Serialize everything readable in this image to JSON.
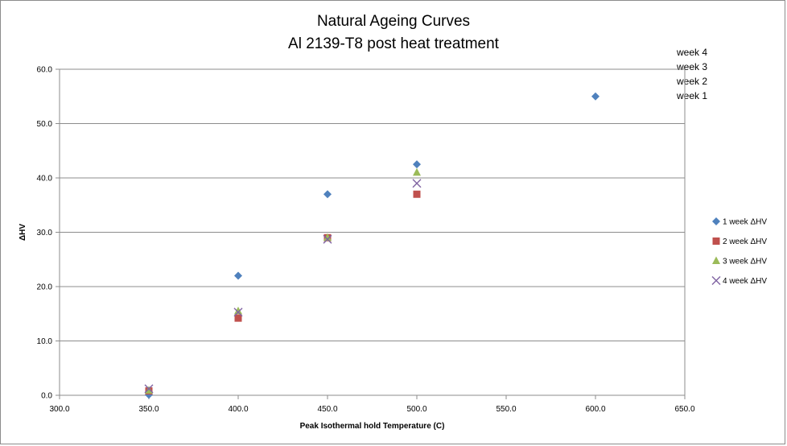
{
  "chart_data": {
    "type": "scatter",
    "title": "Natural Ageing Curves",
    "subtitle": "Al 2139-T8 post heat treatment",
    "xlabel": "Peak Isothermal hold Temperature (C)",
    "ylabel": "ΔHV",
    "xlim": [
      300,
      650
    ],
    "ylim": [
      0,
      60
    ],
    "x_ticks": [
      "300.0",
      "350.0",
      "400.0",
      "450.0",
      "500.0",
      "550.0",
      "600.0",
      "650.0"
    ],
    "y_ticks": [
      "0.0",
      "10.0",
      "20.0",
      "30.0",
      "40.0",
      "50.0",
      "60.0"
    ],
    "grid": "horizontal",
    "legend_position": "right",
    "side_notes": [
      "week 4",
      "week 3",
      "week 2",
      "week 1"
    ],
    "series": [
      {
        "name": "1 week  ΔHV",
        "marker": "diamond",
        "color": "#4f81bd",
        "points": [
          [
            350,
            0.1
          ],
          [
            400,
            22.0
          ],
          [
            450,
            37.0
          ],
          [
            500,
            42.5
          ],
          [
            600,
            55.0
          ]
        ]
      },
      {
        "name": "2 week  ΔHV",
        "marker": "square",
        "color": "#c0504d",
        "points": [
          [
            350,
            0.8
          ],
          [
            400,
            14.2
          ],
          [
            450,
            29.0
          ],
          [
            500,
            37.0
          ]
        ]
      },
      {
        "name": "3 week  ΔHV",
        "marker": "triangle",
        "color": "#9bbb59",
        "points": [
          [
            350,
            0.9
          ],
          [
            400,
            15.5
          ],
          [
            450,
            29.0
          ],
          [
            500,
            41.0
          ]
        ]
      },
      {
        "name": "4 week  ΔHV",
        "marker": "x",
        "color": "#8064a2",
        "points": [
          [
            350,
            1.2
          ],
          [
            400,
            15.3
          ],
          [
            450,
            28.7
          ],
          [
            500,
            39.0
          ]
        ]
      }
    ]
  }
}
